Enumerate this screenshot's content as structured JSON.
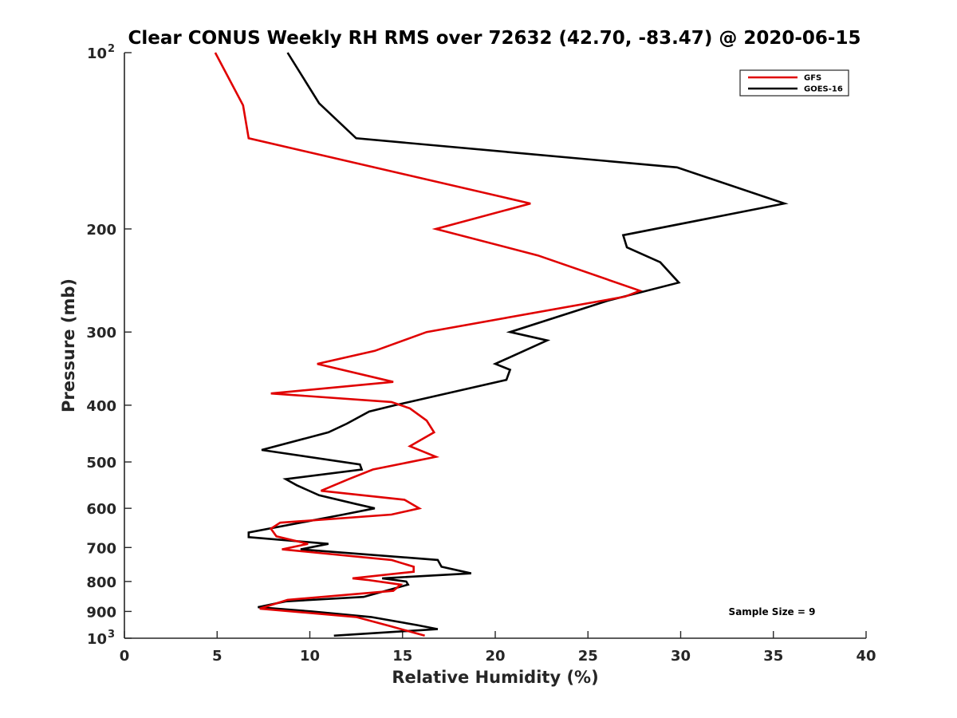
{
  "chart_data": {
    "type": "line",
    "title": "Clear CONUS Weekly RH RMS over 72632 (42.70, -83.47) @ 2020-06-15",
    "xlabel": "Relative Humidity (%)",
    "ylabel": "Pressure (mb)",
    "xlim": [
      0,
      40
    ],
    "ylim": [
      100,
      1000
    ],
    "y_scale": "log",
    "y_reversed": true,
    "grid": false,
    "legend_position": "top-right",
    "x_ticks": [
      "0",
      "5",
      "10",
      "15",
      "20",
      "25",
      "30",
      "35",
      "40"
    ],
    "y_ticks": [
      {
        "value": 100,
        "base": "10",
        "exp": "2"
      },
      {
        "value": 200,
        "label": "200"
      },
      {
        "value": 300,
        "label": "300"
      },
      {
        "value": 400,
        "label": "400"
      },
      {
        "value": 500,
        "label": "500"
      },
      {
        "value": 600,
        "label": "600"
      },
      {
        "value": 700,
        "label": "700"
      },
      {
        "value": 800,
        "label": "800"
      },
      {
        "value": 900,
        "label": "900"
      },
      {
        "value": 1000,
        "base": "10",
        "exp": "3"
      }
    ],
    "annotation": "Sample Size = 9",
    "series": [
      {
        "name": "GFS",
        "color": "#e00000",
        "points": [
          [
            16.2,
            990
          ],
          [
            14.4,
            955
          ],
          [
            12.5,
            920
          ],
          [
            7.3,
            890
          ],
          [
            8.8,
            860
          ],
          [
            14.5,
            830
          ],
          [
            14.9,
            810
          ],
          [
            13.1,
            795
          ],
          [
            12.3,
            790
          ],
          [
            15.6,
            770
          ],
          [
            15.6,
            755
          ],
          [
            14.4,
            735
          ],
          [
            8.5,
            705
          ],
          [
            9.9,
            690
          ],
          [
            8.2,
            670
          ],
          [
            7.9,
            650
          ],
          [
            8.4,
            635
          ],
          [
            14.4,
            615
          ],
          [
            15.9,
            600
          ],
          [
            15.1,
            580
          ],
          [
            10.6,
            560
          ],
          [
            12.1,
            535
          ],
          [
            13.4,
            515
          ],
          [
            16.8,
            490
          ],
          [
            15.4,
            470
          ],
          [
            16.7,
            445
          ],
          [
            16.3,
            425
          ],
          [
            15.4,
            405
          ],
          [
            14.4,
            395
          ],
          [
            7.9,
            382
          ],
          [
            14.5,
            365
          ],
          [
            10.4,
            340
          ],
          [
            13.5,
            323
          ],
          [
            16.3,
            300
          ],
          [
            27.0,
            261
          ],
          [
            27.8,
            255
          ],
          [
            22.3,
            222
          ],
          [
            16.8,
            200
          ],
          [
            21.9,
            181
          ],
          [
            6.7,
            140
          ],
          [
            6.4,
            123
          ],
          [
            4.9,
            100
          ]
        ]
      },
      {
        "name": "GOES-16",
        "color": "#000000",
        "points": [
          [
            11.3,
            990
          ],
          [
            16.9,
            965
          ],
          [
            15.8,
            950
          ],
          [
            13.3,
            920
          ],
          [
            10.1,
            900
          ],
          [
            7.2,
            885
          ],
          [
            8.7,
            865
          ],
          [
            12.9,
            850
          ],
          [
            15.3,
            810
          ],
          [
            15.2,
            800
          ],
          [
            13.9,
            790
          ],
          [
            18.7,
            775
          ],
          [
            17.1,
            755
          ],
          [
            16.9,
            735
          ],
          [
            9.5,
            705
          ],
          [
            11.0,
            690
          ],
          [
            6.7,
            672
          ],
          [
            6.7,
            660
          ],
          [
            11.8,
            615
          ],
          [
            13.5,
            600
          ],
          [
            12.5,
            590
          ],
          [
            10.5,
            570
          ],
          [
            9.3,
            548
          ],
          [
            8.7,
            535
          ],
          [
            12.8,
            515
          ],
          [
            12.7,
            505
          ],
          [
            7.4,
            477
          ],
          [
            11.0,
            445
          ],
          [
            12.0,
            430
          ],
          [
            13.2,
            410
          ],
          [
            14.6,
            400
          ],
          [
            20.6,
            362
          ],
          [
            20.8,
            348
          ],
          [
            20.0,
            340
          ],
          [
            22.8,
            310
          ],
          [
            20.8,
            300
          ],
          [
            26.1,
            265
          ],
          [
            29.9,
            247
          ],
          [
            28.9,
            228
          ],
          [
            27.1,
            215
          ],
          [
            26.9,
            205
          ],
          [
            35.6,
            181
          ],
          [
            29.8,
            157
          ],
          [
            12.5,
            140
          ],
          [
            10.5,
            122
          ],
          [
            8.8,
            100
          ]
        ]
      }
    ]
  }
}
